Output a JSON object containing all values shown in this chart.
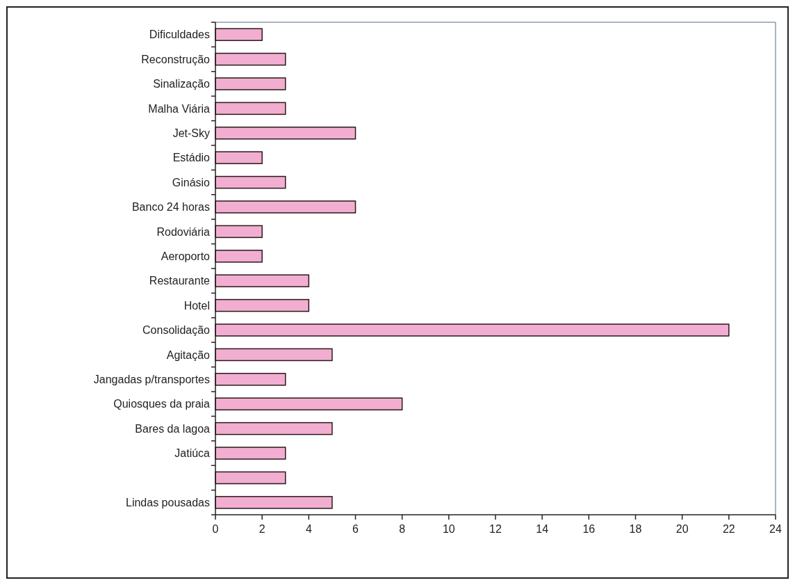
{
  "chart_data": {
    "type": "bar",
    "orientation": "horizontal",
    "categories": [
      "Dificuldades",
      "Reconstrução",
      "Sinalização",
      "Malha Viária",
      "Jet-Sky",
      "Estádio",
      "Ginásio",
      "Banco 24 horas",
      "Rodoviária",
      "Aeroporto",
      "Restaurante",
      "Hotel",
      "Consolidação",
      "Agitação",
      "Jangadas p/transportes",
      "Quiosques da praia",
      "Bares da lagoa",
      "Jatiúca",
      null,
      "Lindas pousadas"
    ],
    "values": [
      2,
      3,
      3,
      3,
      6,
      2,
      3,
      6,
      2,
      2,
      4,
      4,
      22,
      5,
      3,
      8,
      5,
      3,
      3,
      5
    ],
    "color": "#f2aed0",
    "xlim": [
      0,
      24
    ],
    "xticks": [
      0,
      2,
      4,
      6,
      8,
      10,
      12,
      14,
      16,
      18,
      20,
      22,
      24
    ],
    "grid": false
  }
}
